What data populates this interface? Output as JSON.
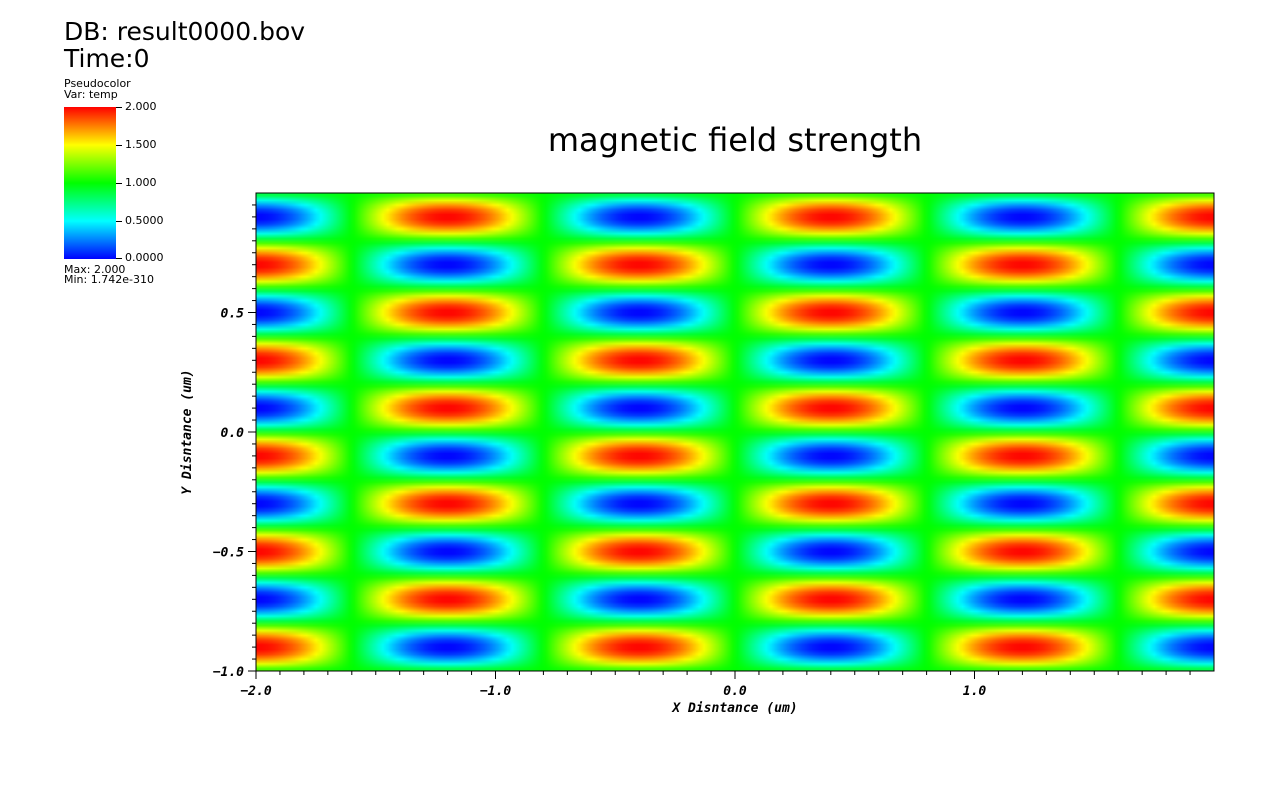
{
  "header": {
    "db_label": "DB: result0000.bov",
    "time_label": "Time:0"
  },
  "legend": {
    "plot_type": "Pseudocolor",
    "var_label": "Var: temp",
    "max_label": "Max:  2.000",
    "min_label": "Min:  1.742e-310",
    "ticks": [
      "2.000",
      "1.500",
      "1.000",
      "0.5000",
      "0.0000"
    ],
    "colors": [
      "#0000ff",
      "#00ffff",
      "#00ff00",
      "#ffff00",
      "#ff0000"
    ]
  },
  "chart_data": {
    "type": "heatmap",
    "title": "magnetic field strength",
    "xlabel": "X Disntance (um)",
    "ylabel": "Y Disntance (um)",
    "xlim": [
      -2.0,
      2.0
    ],
    "ylim": [
      -1.0,
      1.0
    ],
    "x_ticks": [
      "-2.0",
      "-1.0",
      "0.0",
      "1.0"
    ],
    "y_ticks": [
      "-1.0",
      "-0.5",
      "0.0",
      "0.5"
    ],
    "value_range": [
      0.0,
      2.0
    ],
    "field": "sin(PI*x/0.8) * sin(PI*y/0.2) + 1",
    "colormap": "hot_desaturated rainbow (blue-cyan-green-yellow-red)"
  }
}
